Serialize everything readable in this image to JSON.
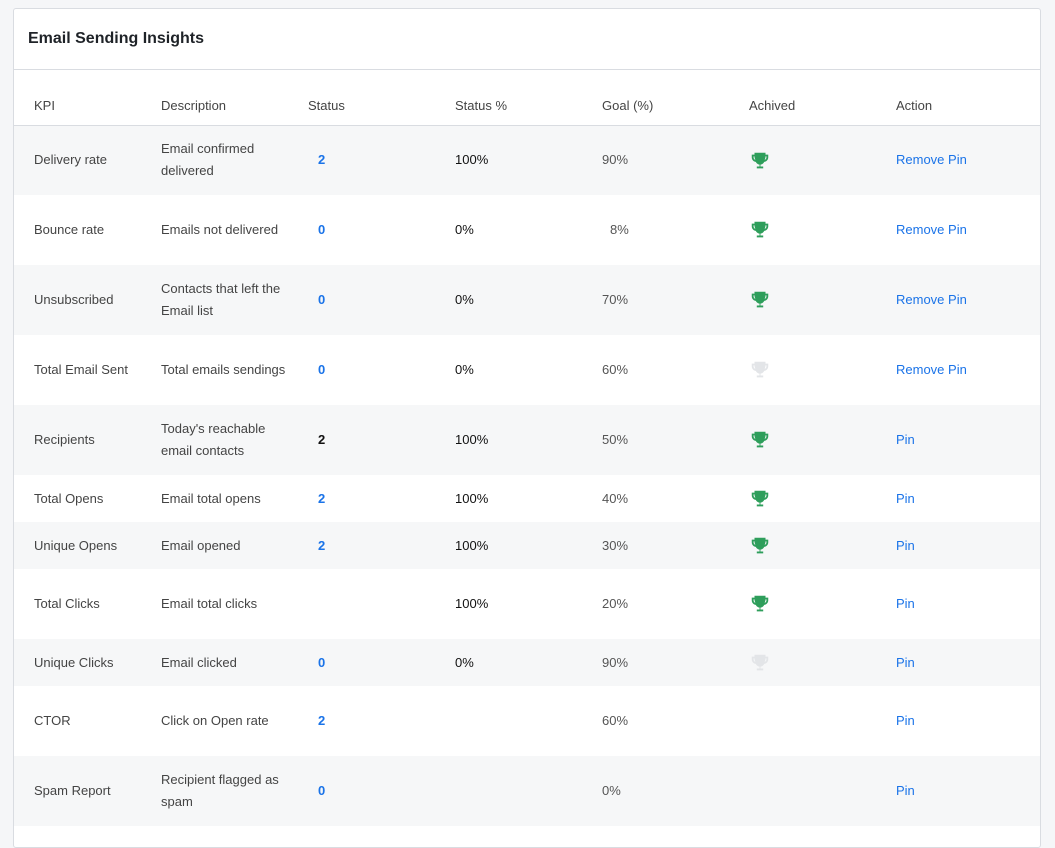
{
  "card": {
    "title": "Email Sending Insights"
  },
  "columns": {
    "kpi": "KPI",
    "description": "Description",
    "status": "Status",
    "status_pct": "Status %",
    "goal": "Goal (%)",
    "achieved": "Achived",
    "action": "Action"
  },
  "colors": {
    "achieved": "#2e9e5b",
    "not_achieved": "#e3e5e8",
    "link": "#1a73e8"
  },
  "rows": [
    {
      "kpi": "Delivery rate",
      "description": "Email confirmed delivered",
      "status": "2",
      "status_link": true,
      "status_pct": "100%",
      "goal": "90%",
      "trophy": "achieved",
      "action": "Remove Pin"
    },
    {
      "kpi": "Bounce rate",
      "description": "Emails not delivered",
      "status": "0",
      "status_link": true,
      "status_pct": "0%",
      "goal": "8%",
      "trophy": "achieved",
      "action": "Remove Pin"
    },
    {
      "kpi": "Unsubscribed",
      "description": "Contacts that left the Email list",
      "status": "0",
      "status_link": true,
      "status_pct": "0%",
      "goal": "70%",
      "trophy": "achieved",
      "action": "Remove Pin"
    },
    {
      "kpi": "Total Email Sent",
      "description": "Total emails sendings",
      "status": "0",
      "status_link": true,
      "status_pct": "0%",
      "goal": "60%",
      "trophy": "not-achieved",
      "action": "Remove Pin"
    },
    {
      "kpi": "Recipients",
      "description": "Today's reachable email contacts",
      "status": "2",
      "status_link": false,
      "status_pct": "100%",
      "goal": "50%",
      "trophy": "achieved",
      "action": "Pin"
    },
    {
      "kpi": "Total Opens",
      "description": "Email total opens",
      "status": "2",
      "status_link": true,
      "status_pct": "100%",
      "goal": "40%",
      "trophy": "achieved",
      "action": "Pin"
    },
    {
      "kpi": "Unique Opens",
      "description": "Email opened",
      "status": "2",
      "status_link": true,
      "status_pct": "100%",
      "goal": "30%",
      "trophy": "achieved",
      "action": "Pin"
    },
    {
      "kpi": "Total Clicks",
      "description": "Email total clicks",
      "status": "",
      "status_link": true,
      "status_pct": "100%",
      "goal": "20%",
      "trophy": "achieved",
      "action": "Pin"
    },
    {
      "kpi": "Unique Clicks",
      "description": "Email clicked",
      "status": "0",
      "status_link": true,
      "status_pct": "0%",
      "goal": "90%",
      "trophy": "not-achieved",
      "action": "Pin"
    },
    {
      "kpi": "CTOR",
      "description": "Click on Open rate",
      "status": "2",
      "status_link": true,
      "status_pct": "",
      "goal": "60%",
      "trophy": "none",
      "action": "Pin"
    },
    {
      "kpi": "Spam Report",
      "description": "Recipient flagged as spam",
      "status": "0",
      "status_link": true,
      "status_pct": "",
      "goal": "0%",
      "trophy": "none",
      "action": "Pin"
    }
  ]
}
